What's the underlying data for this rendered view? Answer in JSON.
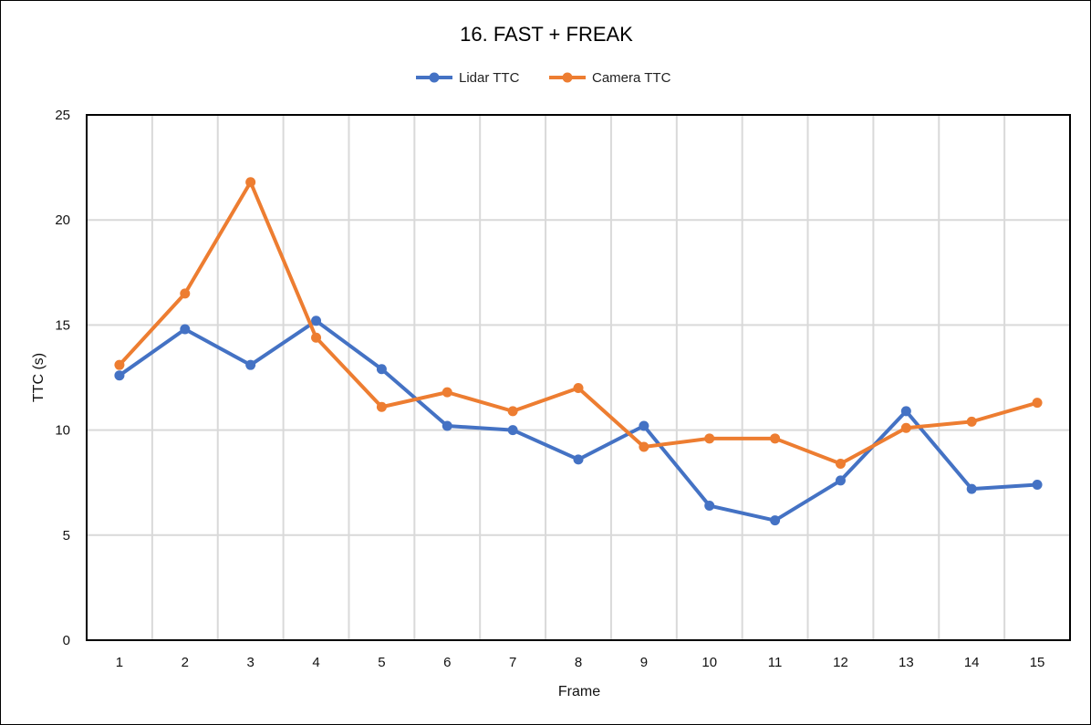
{
  "chart_data": {
    "type": "line",
    "title": "16. FAST + FREAK",
    "xlabel": "Frame",
    "ylabel": "TTC (s)",
    "categories": [
      "1",
      "2",
      "3",
      "4",
      "5",
      "6",
      "7",
      "8",
      "9",
      "10",
      "11",
      "12",
      "13",
      "14",
      "15"
    ],
    "ylim": [
      0,
      25
    ],
    "yticks": [
      "0",
      "5",
      "10",
      "15",
      "20",
      "25"
    ],
    "legend_position": "top-center",
    "grid": true,
    "series": [
      {
        "name": "Lidar TTC",
        "color": "#4472C4",
        "values": [
          12.6,
          14.8,
          13.1,
          15.2,
          12.9,
          10.2,
          10.0,
          8.6,
          10.2,
          6.4,
          5.7,
          7.6,
          10.9,
          7.2,
          7.4
        ]
      },
      {
        "name": "Camera TTC",
        "color": "#ED7D31",
        "values": [
          13.1,
          16.5,
          21.8,
          14.4,
          11.1,
          11.8,
          10.9,
          12.0,
          9.2,
          9.6,
          9.6,
          8.4,
          10.1,
          10.4,
          11.3
        ]
      }
    ]
  }
}
